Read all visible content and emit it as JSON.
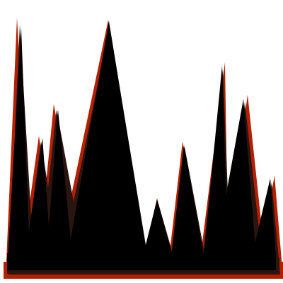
{
  "image": {
    "subject": "spiky-peaks-graphic",
    "colors": {
      "background": "#ffffff",
      "fill": "#000000",
      "shadow": "#2a1510",
      "outline": "#b32000"
    }
  }
}
